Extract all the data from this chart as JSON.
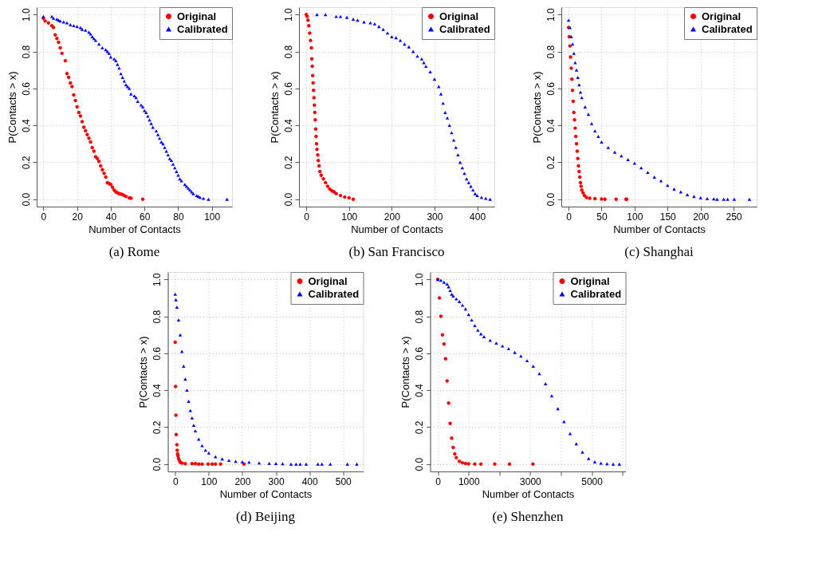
{
  "chart_data": [
    {
      "type": "scatter",
      "title": "(a) Rome",
      "xlabel": "Number of Contacts",
      "ylabel": "P(Contacts > x)",
      "xlim": [
        -4,
        112
      ],
      "xticks": [
        0,
        20,
        40,
        60,
        80,
        100
      ],
      "ylim": [
        -0.04,
        1.04
      ],
      "yticks": [
        {
          "value": 0.0,
          "label": "0.0"
        },
        {
          "value": 0.2,
          "label": "0.2"
        },
        {
          "value": 0.4,
          "label": "0.4"
        },
        {
          "value": 0.6,
          "label": "0.6"
        },
        {
          "value": 0.8,
          "label": "0.8"
        },
        {
          "value": 1.0,
          "label": "1.0"
        }
      ],
      "grid": true,
      "legend": "top right",
      "series": [
        {
          "name": "Original",
          "color": "#ff0000",
          "marker": "circle",
          "x": [
            0,
            1,
            3,
            5,
            6,
            7,
            8,
            9,
            10,
            11,
            13,
            14,
            15,
            16,
            17,
            18,
            19,
            20,
            21,
            22,
            23,
            24,
            25,
            26,
            27,
            28,
            29,
            30,
            31,
            32,
            33,
            34,
            35,
            36,
            37,
            38,
            39,
            40,
            41,
            42,
            43,
            44,
            45,
            46,
            47,
            48,
            49,
            51,
            52,
            59
          ],
          "values": [
            0.98,
            0.965,
            0.955,
            0.94,
            0.93,
            0.89,
            0.87,
            0.85,
            0.82,
            0.79,
            0.75,
            0.68,
            0.66,
            0.63,
            0.61,
            0.565,
            0.535,
            0.5,
            0.47,
            0.45,
            0.42,
            0.39,
            0.37,
            0.35,
            0.33,
            0.31,
            0.28,
            0.26,
            0.23,
            0.22,
            0.205,
            0.18,
            0.16,
            0.14,
            0.12,
            0.09,
            0.085,
            0.08,
            0.065,
            0.05,
            0.04,
            0.035,
            0.03,
            0.028,
            0.025,
            0.02,
            0.015,
            0.008,
            0.005,
            0.0
          ]
        },
        {
          "name": "Calibrated",
          "color": "#0000ff",
          "marker": "triangle",
          "x": [
            0,
            5,
            6,
            8,
            9,
            10,
            12,
            14,
            16,
            18,
            20,
            22,
            23,
            25,
            27,
            28,
            29,
            30,
            31,
            33,
            35,
            37,
            38,
            39,
            40,
            42,
            43,
            44,
            45,
            46,
            47,
            48,
            49,
            50,
            51,
            52,
            54,
            55,
            56,
            58,
            59,
            60,
            61,
            62,
            63,
            64,
            65,
            67,
            68,
            69,
            70,
            71,
            72,
            73,
            74,
            75,
            76,
            77,
            78,
            79,
            80,
            81,
            82,
            84,
            85,
            86,
            87,
            88,
            89,
            91,
            92,
            93,
            95,
            98,
            109
          ],
          "values": [
            0.99,
            0.99,
            0.98,
            0.975,
            0.97,
            0.965,
            0.96,
            0.955,
            0.945,
            0.94,
            0.935,
            0.93,
            0.92,
            0.915,
            0.905,
            0.895,
            0.88,
            0.87,
            0.86,
            0.84,
            0.82,
            0.81,
            0.8,
            0.79,
            0.77,
            0.76,
            0.75,
            0.73,
            0.71,
            0.68,
            0.66,
            0.64,
            0.62,
            0.61,
            0.6,
            0.57,
            0.56,
            0.55,
            0.53,
            0.51,
            0.5,
            0.48,
            0.47,
            0.45,
            0.43,
            0.41,
            0.39,
            0.37,
            0.35,
            0.33,
            0.31,
            0.3,
            0.28,
            0.26,
            0.24,
            0.22,
            0.21,
            0.19,
            0.17,
            0.15,
            0.13,
            0.11,
            0.1,
            0.08,
            0.07,
            0.06,
            0.05,
            0.04,
            0.03,
            0.02,
            0.015,
            0.01,
            0.005,
            0.0,
            0.0
          ]
        }
      ]
    },
    {
      "type": "scatter",
      "title": "(b) San Francisco",
      "xlabel": "Number of Contacts",
      "ylabel": "P(Contacts > x)",
      "xlim": [
        -17,
        440
      ],
      "xticks": [
        0,
        100,
        200,
        300,
        400
      ],
      "ylim": [
        -0.04,
        1.04
      ],
      "yticks": [
        {
          "value": 0,
          "label": "0.0"
        },
        0.2,
        0.4,
        0.6,
        0.8,
        {
          "value": 1,
          "label": "1.0"
        }
      ],
      "grid": true,
      "legend": "top right",
      "series": [
        {
          "name": "Original",
          "color": "#ff0000",
          "marker": "circle",
          "x": [
            0,
            2,
            4,
            6,
            8,
            10,
            12,
            13,
            14,
            15,
            16,
            17,
            18,
            19,
            20,
            21,
            22,
            23,
            24,
            25,
            27,
            28,
            30,
            32,
            35,
            40,
            45,
            50,
            55,
            60,
            65,
            70,
            80,
            90,
            100,
            110
          ],
          "values": [
            1.0,
            0.99,
            0.97,
            0.94,
            0.9,
            0.86,
            0.82,
            0.76,
            0.72,
            0.67,
            0.63,
            0.59,
            0.55,
            0.51,
            0.47,
            0.43,
            0.38,
            0.34,
            0.3,
            0.27,
            0.24,
            0.21,
            0.18,
            0.15,
            0.13,
            0.11,
            0.09,
            0.07,
            0.055,
            0.045,
            0.04,
            0.03,
            0.02,
            0.012,
            0.008,
            0.0
          ]
        },
        {
          "name": "Calibrated",
          "color": "#0000ff",
          "marker": "triangle",
          "x": [
            25,
            45,
            70,
            80,
            95,
            110,
            120,
            135,
            150,
            160,
            170,
            180,
            190,
            200,
            210,
            220,
            230,
            240,
            250,
            260,
            270,
            275,
            280,
            290,
            300,
            310,
            315,
            320,
            325,
            330,
            335,
            340,
            345,
            350,
            355,
            360,
            365,
            370,
            375,
            380,
            385,
            390,
            395,
            400,
            410,
            420,
            430
          ],
          "values": [
            1.0,
            1.0,
            0.99,
            0.99,
            0.985,
            0.975,
            0.97,
            0.96,
            0.955,
            0.95,
            0.935,
            0.92,
            0.9,
            0.88,
            0.875,
            0.86,
            0.84,
            0.825,
            0.8,
            0.775,
            0.76,
            0.74,
            0.72,
            0.69,
            0.65,
            0.61,
            0.57,
            0.52,
            0.47,
            0.44,
            0.4,
            0.36,
            0.32,
            0.28,
            0.24,
            0.2,
            0.17,
            0.14,
            0.11,
            0.09,
            0.07,
            0.05,
            0.03,
            0.02,
            0.01,
            0.005,
            0.0
          ]
        }
      ]
    },
    {
      "type": "scatter",
      "title": "(c) Shanghai",
      "xlabel": "Number of Contacts",
      "ylabel": "P(Contacts > x)",
      "xlim": [
        -11,
        285
      ],
      "xticks": [
        0,
        50,
        100,
        150,
        200,
        250
      ],
      "ylim": [
        -0.04,
        1.04
      ],
      "yticks": [
        {
          "value": 0,
          "label": "0.0"
        },
        0.2,
        0.4,
        0.6,
        0.8,
        {
          "value": 1,
          "label": "1.0"
        }
      ],
      "grid": true,
      "legend": "top right",
      "series": [
        {
          "name": "Original",
          "color": "#ff0000",
          "marker": "circle",
          "x": [
            0,
            1,
            2,
            3,
            4,
            5,
            6,
            7,
            8,
            9,
            10,
            11,
            12,
            13,
            14,
            15,
            16,
            17,
            18,
            19,
            20,
            22,
            24,
            27,
            32,
            40,
            50,
            55,
            72,
            87,
            88
          ],
          "values": [
            0.93,
            0.88,
            0.83,
            0.77,
            0.71,
            0.65,
            0.59,
            0.53,
            0.47,
            0.43,
            0.385,
            0.34,
            0.3,
            0.26,
            0.22,
            0.18,
            0.15,
            0.12,
            0.09,
            0.07,
            0.05,
            0.035,
            0.02,
            0.01,
            0.005,
            0.003,
            0.001,
            0.0,
            0.0,
            0.0,
            0.0
          ]
        },
        {
          "name": "Calibrated",
          "color": "#0000ff",
          "marker": "triangle",
          "x": [
            0,
            2,
            4,
            6,
            8,
            10,
            12,
            14,
            16,
            18,
            20,
            25,
            30,
            35,
            40,
            45,
            50,
            60,
            70,
            80,
            90,
            100,
            110,
            120,
            130,
            140,
            150,
            160,
            170,
            180,
            190,
            200,
            210,
            220,
            225,
            235,
            241,
            251,
            274
          ],
          "values": [
            0.97,
            0.93,
            0.88,
            0.84,
            0.79,
            0.74,
            0.7,
            0.66,
            0.62,
            0.58,
            0.55,
            0.5,
            0.46,
            0.41,
            0.37,
            0.34,
            0.31,
            0.28,
            0.255,
            0.235,
            0.215,
            0.195,
            0.17,
            0.145,
            0.12,
            0.1,
            0.075,
            0.055,
            0.04,
            0.025,
            0.015,
            0.008,
            0.004,
            0.002,
            0.0,
            0.0,
            0.0,
            0.0,
            0.0
          ]
        }
      ]
    },
    {
      "type": "scatter",
      "title": "(d) Beijing",
      "xlabel": "Number of Contacts",
      "ylabel": "P(Contacts > x)",
      "xlim": [
        -22,
        560
      ],
      "xticks": [
        0,
        100,
        200,
        300,
        400,
        500
      ],
      "ylim": [
        -0.04,
        1.04
      ],
      "yticks": [
        {
          "value": 0,
          "label": "0.0"
        },
        0.2,
        0.4,
        0.6,
        0.8,
        {
          "value": 1,
          "label": "1.0"
        }
      ],
      "grid": true,
      "legend": "top right",
      "series": [
        {
          "name": "Original",
          "color": "#ff0000",
          "marker": "circle",
          "x": [
            0,
            1,
            2,
            3,
            5,
            6,
            7,
            8,
            10,
            12,
            15,
            20,
            30,
            50,
            60,
            70,
            80,
            98,
            110,
            120,
            135,
            205
          ],
          "values": [
            0.66,
            0.42,
            0.265,
            0.16,
            0.105,
            0.075,
            0.055,
            0.045,
            0.03,
            0.02,
            0.01,
            0.005,
            0.002,
            0.002,
            0.002,
            0.0,
            0.0,
            0.0,
            0.0,
            0.0,
            0.0,
            0.0
          ]
        },
        {
          "name": "Calibrated",
          "color": "#0000ff",
          "marker": "triangle",
          "x": [
            0,
            2,
            5,
            10,
            15,
            20,
            25,
            30,
            35,
            40,
            45,
            50,
            55,
            60,
            70,
            80,
            90,
            100,
            120,
            140,
            160,
            180,
            200,
            220,
            250,
            280,
            300,
            320,
            345,
            360,
            372,
            390,
            425,
            437,
            462,
            513,
            541
          ],
          "values": [
            0.92,
            0.89,
            0.85,
            0.78,
            0.7,
            0.61,
            0.53,
            0.46,
            0.4,
            0.34,
            0.29,
            0.25,
            0.21,
            0.18,
            0.135,
            0.1,
            0.075,
            0.06,
            0.04,
            0.028,
            0.02,
            0.015,
            0.012,
            0.01,
            0.006,
            0.004,
            0.003,
            0.002,
            0.0,
            0.0,
            0.0,
            0.0,
            0.0,
            0.0,
            0.0,
            0.0,
            0.0
          ]
        }
      ]
    },
    {
      "type": "scatter",
      "title": "(e) Shenzhen",
      "xlabel": "Number of Contacts",
      "ylabel": "P(Contacts > x)",
      "xlim": [
        -250,
        6100
      ],
      "xticks": [
        0,
        1000,
        {
          "value": 2000,
          "label": null
        },
        3000,
        {
          "value": 4000,
          "label": null
        },
        5000,
        {
          "value": 6000,
          "label": null
        }
      ],
      "ylim": [
        -0.04,
        1.04
      ],
      "yticks": [
        {
          "value": 0,
          "label": "0.0"
        },
        0.2,
        0.4,
        0.6,
        0.8,
        {
          "value": 1,
          "label": "1.0"
        }
      ],
      "grid": true,
      "legend": "top right",
      "series": [
        {
          "name": "Original",
          "color": "#ff0000",
          "marker": "circle",
          "x": [
            0,
            50,
            100,
            150,
            200,
            250,
            300,
            350,
            400,
            450,
            500,
            550,
            600,
            700,
            800,
            900,
            1000,
            1200,
            1400,
            1850,
            2330,
            3090
          ],
          "values": [
            1.0,
            0.9,
            0.8,
            0.7,
            0.65,
            0.57,
            0.45,
            0.33,
            0.22,
            0.14,
            0.09,
            0.055,
            0.035,
            0.015,
            0.007,
            0.003,
            0.001,
            0.0,
            0.0,
            0.0,
            0.0,
            0.0
          ]
        },
        {
          "name": "Calibrated",
          "color": "#0000ff",
          "marker": "triangle",
          "x": [
            0,
            100,
            200,
            300,
            350,
            400,
            450,
            500,
            600,
            700,
            800,
            900,
            1000,
            1100,
            1200,
            1300,
            1400,
            1500,
            1700,
            1900,
            2100,
            2300,
            2500,
            2700,
            2900,
            3100,
            3300,
            3500,
            3700,
            3900,
            4100,
            4300,
            4500,
            4700,
            4900,
            5100,
            5300,
            5500,
            5700,
            5900
          ],
          "values": [
            1.0,
            0.995,
            0.985,
            0.975,
            0.96,
            0.94,
            0.92,
            0.91,
            0.895,
            0.88,
            0.86,
            0.84,
            0.81,
            0.78,
            0.75,
            0.725,
            0.705,
            0.69,
            0.67,
            0.655,
            0.64,
            0.625,
            0.605,
            0.585,
            0.56,
            0.53,
            0.49,
            0.435,
            0.37,
            0.3,
            0.23,
            0.165,
            0.11,
            0.065,
            0.03,
            0.012,
            0.005,
            0.002,
            0.0,
            0.0
          ]
        }
      ]
    }
  ]
}
